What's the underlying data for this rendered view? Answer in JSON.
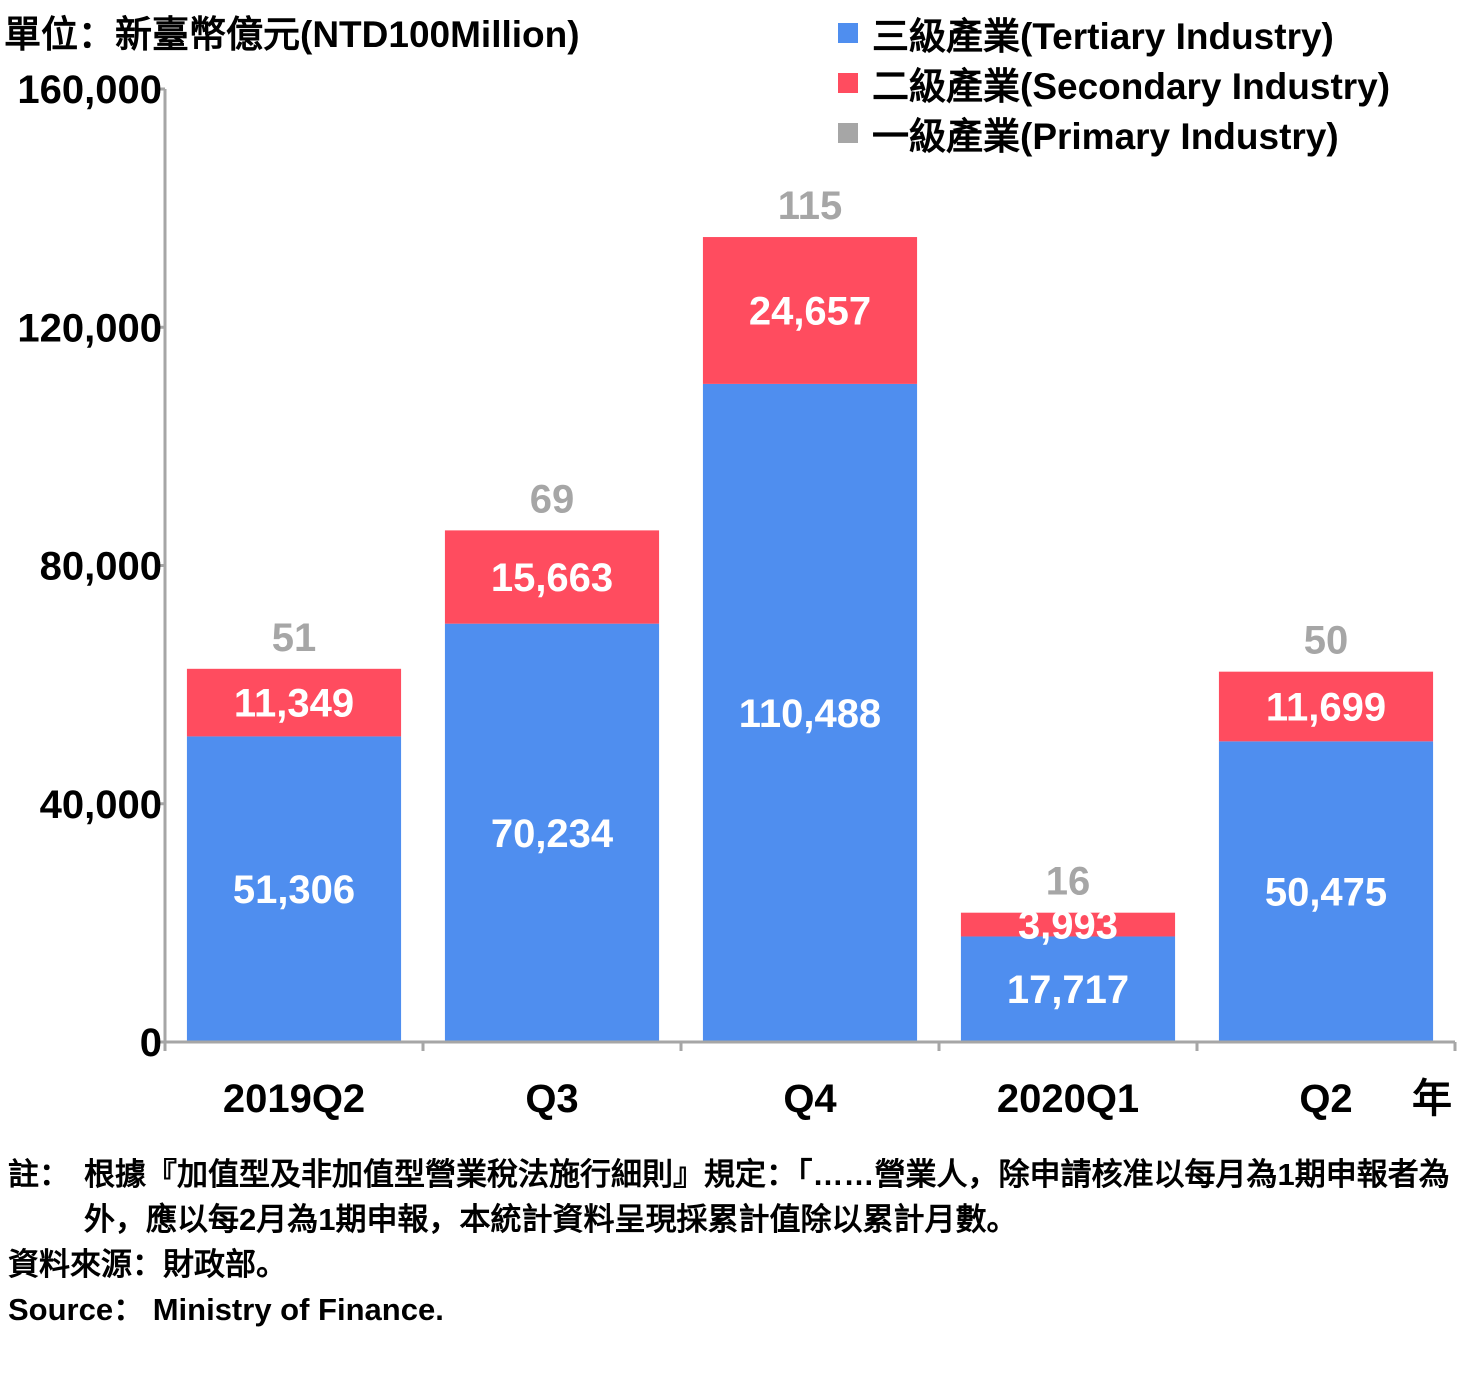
{
  "unit_label": "單位：新臺幣億元(NTD100Million)",
  "colors": {
    "tertiary": "#4F8EEF",
    "secondary": "#FF4C5F",
    "primary": "#A6A6A6",
    "axis": "#A6A6A6"
  },
  "chart_data": {
    "type": "bar",
    "stacked": true,
    "categories": [
      "2019Q2",
      "Q3",
      "Q4",
      "2020Q1",
      "Q2"
    ],
    "x_unit_label": "年",
    "ylim": [
      0,
      160000
    ],
    "yticks": [
      0,
      40000,
      80000,
      120000,
      160000
    ],
    "ytick_labels": [
      "0",
      "40,000",
      "80,000",
      "120,000",
      "160,000"
    ],
    "legend_position": "top-right",
    "series": [
      {
        "key": "tertiary",
        "name": "三級產業(Tertiary Industry)",
        "values": [
          51306,
          70234,
          110488,
          17717,
          50475
        ],
        "labels": [
          "51,306",
          "70,234",
          "110,488",
          "17,717",
          "50,475"
        ]
      },
      {
        "key": "secondary",
        "name": "二級產業(Secondary Industry)",
        "values": [
          11349,
          15663,
          24657,
          3993,
          11699
        ],
        "labels": [
          "11,349",
          "15,663",
          "24,657",
          "3,993",
          "11,699"
        ]
      },
      {
        "key": "primary",
        "name": "一級產業(Primary Industry)",
        "values": [
          51,
          69,
          115,
          16,
          50
        ],
        "labels": [
          "51",
          "69",
          "115",
          "16",
          "50"
        ]
      }
    ]
  },
  "notes": {
    "note_label": "註：",
    "note_text": "根據『加值型及非加值型營業稅法施行細則』規定：「……營業人，除申請核准以每月為1期申報者為外，應以每2月為1期申報，本統計資料呈現採累計值除以累計月數。",
    "source_zh": "資料來源：財政部。",
    "source_en": "Source： Ministry of Finance."
  }
}
